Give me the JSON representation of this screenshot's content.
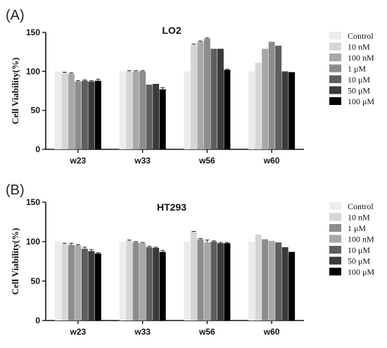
{
  "chart_data": [
    {
      "type": "bar",
      "panel": "(A)",
      "title": "LO2",
      "ylabel": "Cell Viability(%)",
      "xlabel": "",
      "ylim": [
        0,
        150
      ],
      "yticks": [
        0,
        50,
        100,
        150
      ],
      "categories": [
        "w23",
        "w33",
        "w56",
        "w60"
      ],
      "legend_position": "right",
      "series": [
        {
          "name": "Control",
          "color": "#ececec",
          "values": [
            100,
            100,
            100,
            100
          ],
          "errors": [
            0,
            0,
            0,
            0
          ]
        },
        {
          "name": "10 nM",
          "color": "#d6d6d6",
          "values": [
            98,
            100,
            134,
            111
          ],
          "errors": [
            1,
            1,
            1,
            0
          ]
        },
        {
          "name": "100 nM",
          "color": "#a8a8a8",
          "values": [
            97,
            100,
            138,
            129
          ],
          "errors": [
            1,
            1,
            1,
            0
          ]
        },
        {
          "name": "1 μM",
          "color": "#8c8c8c",
          "values": [
            87,
            100,
            142,
            138
          ],
          "errors": [
            1,
            1,
            1,
            0
          ]
        },
        {
          "name": "10 μM",
          "color": "#5e5e5e",
          "values": [
            88,
            83,
            129,
            133
          ],
          "errors": [
            1,
            0,
            0,
            0
          ]
        },
        {
          "name": "50 μM",
          "color": "#3a3a3a",
          "values": [
            87,
            84,
            129,
            100
          ],
          "errors": [
            1,
            0,
            0,
            0
          ]
        },
        {
          "name": "100 μM",
          "color": "#000000",
          "values": [
            88,
            77,
            102,
            99
          ],
          "errors": [
            2,
            2,
            1,
            0
          ]
        }
      ]
    },
    {
      "type": "bar",
      "panel": "(B)",
      "title": "HT293",
      "ylabel": "Cell Viability(%)",
      "xlabel": "",
      "ylim": [
        0,
        150
      ],
      "yticks": [
        0,
        50,
        100,
        150
      ],
      "categories": [
        "w23",
        "w33",
        "w56",
        "w60"
      ],
      "legend_position": "right",
      "series": [
        {
          "name": "Control",
          "color": "#ececec",
          "values": [
            100,
            100,
            100,
            100
          ],
          "errors": [
            0,
            0,
            0,
            0
          ]
        },
        {
          "name": "10 nM",
          "color": "#d6d6d6",
          "values": [
            97,
            101,
            112,
            109
          ],
          "errors": [
            1,
            1,
            1,
            0
          ]
        },
        {
          "name": "1 μM",
          "color": "#8c8c8c",
          "values": [
            96,
            99,
            103,
            103
          ],
          "errors": [
            2,
            1,
            1,
            0
          ]
        },
        {
          "name": "100 nM",
          "color": "#a8a8a8",
          "values": [
            95,
            98,
            99,
            101
          ],
          "errors": [
            1,
            1,
            3,
            0
          ]
        },
        {
          "name": "10 μM",
          "color": "#5e5e5e",
          "values": [
            91,
            93,
            100,
            99
          ],
          "errors": [
            2,
            1,
            1,
            0
          ]
        },
        {
          "name": "50 μM",
          "color": "#3a3a3a",
          "values": [
            88,
            92,
            98,
            93
          ],
          "errors": [
            2,
            1,
            1,
            0
          ]
        },
        {
          "name": "100 μM",
          "color": "#000000",
          "values": [
            85,
            87,
            98,
            87
          ],
          "errors": [
            1,
            2,
            1,
            0
          ]
        }
      ]
    }
  ]
}
